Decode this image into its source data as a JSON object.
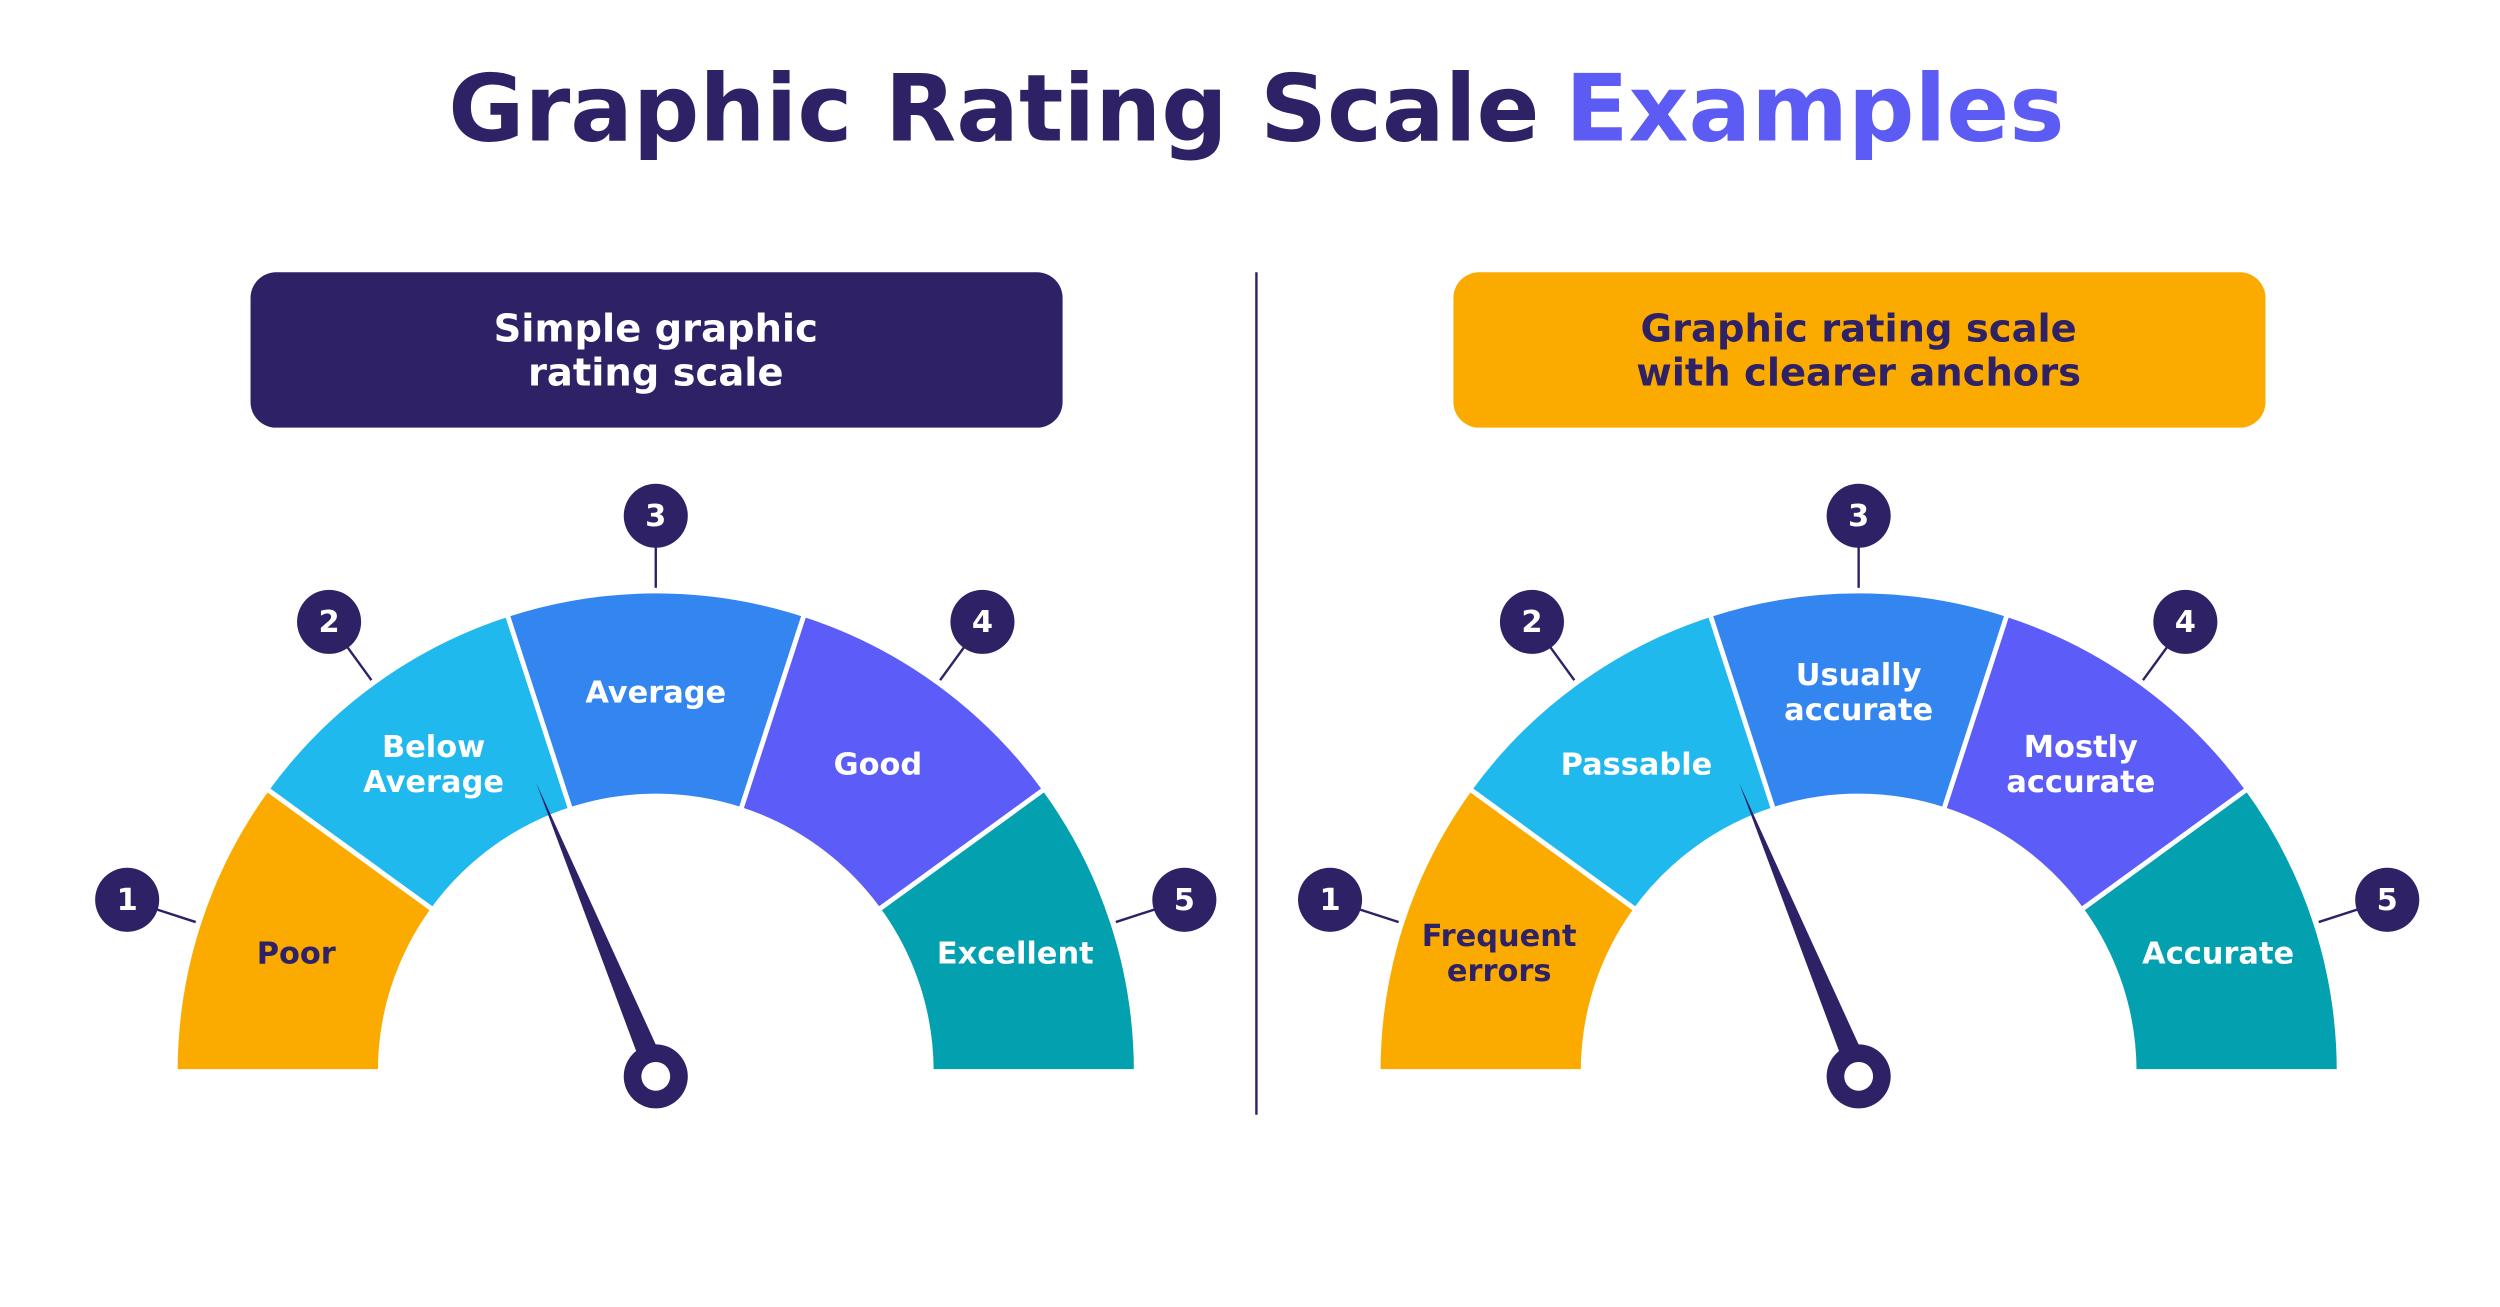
{
  "title": {
    "main": "Graphic Rating Scale",
    "highlight": "Examples"
  },
  "panels": [
    {
      "header": [
        "Simple graphic",
        "rating scale"
      ],
      "segments": [
        {
          "number": 1,
          "label": [
            "Poor"
          ]
        },
        {
          "number": 2,
          "label": [
            "Below",
            "Average"
          ]
        },
        {
          "number": 3,
          "label": [
            "Average"
          ]
        },
        {
          "number": 4,
          "label": [
            "Good"
          ]
        },
        {
          "number": 5,
          "label": [
            "Excellent"
          ]
        }
      ]
    },
    {
      "header": [
        "Graphic rating scale",
        "with clearer anchors"
      ],
      "segments": [
        {
          "number": 1,
          "label": [
            "Frequent",
            "errors"
          ]
        },
        {
          "number": 2,
          "label": [
            "Passable"
          ]
        },
        {
          "number": 3,
          "label": [
            "Usually",
            "accurate"
          ]
        },
        {
          "number": 4,
          "label": [
            "Mostly",
            "accurate"
          ]
        },
        {
          "number": 5,
          "label": [
            "Accurate"
          ]
        }
      ]
    }
  ]
}
